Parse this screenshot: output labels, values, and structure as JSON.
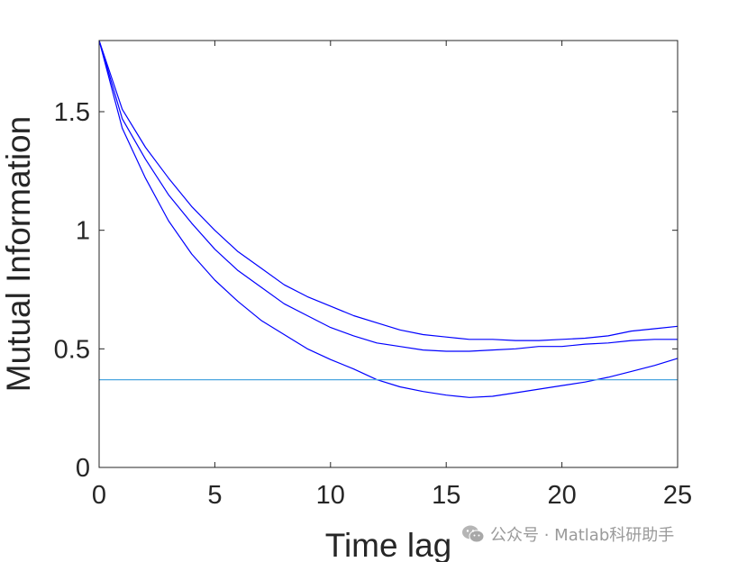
{
  "chart_data": {
    "type": "line",
    "title": "",
    "xlabel": "Time lag",
    "ylabel": "Mutual Information",
    "xlim": [
      0,
      25
    ],
    "ylim": [
      0,
      1.8
    ],
    "xticks": [
      0,
      5,
      10,
      15,
      20,
      25
    ],
    "xtick_labels": [
      "0",
      "5",
      "10",
      "15",
      "20",
      "25"
    ],
    "yticks": [
      0,
      0.5,
      1,
      1.5
    ],
    "ytick_labels": [
      "0",
      "0.5",
      "1",
      "1.5"
    ],
    "grid": false,
    "legend": "none",
    "x": [
      0,
      1,
      2,
      3,
      4,
      5,
      6,
      7,
      8,
      9,
      10,
      11,
      12,
      13,
      14,
      15,
      16,
      17,
      18,
      19,
      20,
      21,
      22,
      23,
      24,
      25
    ],
    "series": [
      {
        "color": "#0000ff",
        "values": [
          1.8,
          1.51,
          1.35,
          1.22,
          1.1,
          1.0,
          0.91,
          0.84,
          0.77,
          0.72,
          0.68,
          0.64,
          0.61,
          0.58,
          0.56,
          0.55,
          0.54,
          0.54,
          0.535,
          0.535,
          0.54,
          0.545,
          0.555,
          0.575,
          0.585,
          0.595
        ]
      },
      {
        "color": "#0000ff",
        "values": [
          1.8,
          1.47,
          1.3,
          1.15,
          1.03,
          0.92,
          0.83,
          0.76,
          0.69,
          0.64,
          0.59,
          0.555,
          0.525,
          0.51,
          0.495,
          0.49,
          0.49,
          0.495,
          0.5,
          0.51,
          0.51,
          0.52,
          0.525,
          0.535,
          0.54,
          0.54
        ]
      },
      {
        "color": "#0000ff",
        "values": [
          1.8,
          1.43,
          1.22,
          1.04,
          0.9,
          0.79,
          0.7,
          0.62,
          0.56,
          0.5,
          0.455,
          0.415,
          0.37,
          0.34,
          0.32,
          0.305,
          0.295,
          0.3,
          0.315,
          0.33,
          0.345,
          0.36,
          0.38,
          0.405,
          0.43,
          0.46
        ]
      },
      {
        "color": "#4ba6e0",
        "values": [
          0.37,
          0.37,
          0.37,
          0.37,
          0.37,
          0.37,
          0.37,
          0.37,
          0.37,
          0.37,
          0.37,
          0.37,
          0.37,
          0.37,
          0.37,
          0.37,
          0.37,
          0.37,
          0.37,
          0.37,
          0.37,
          0.37,
          0.37,
          0.37,
          0.37,
          0.37
        ]
      }
    ]
  },
  "watermark": {
    "icon": "wechat-icon",
    "text": "公众号 · Matlab科研助手"
  }
}
